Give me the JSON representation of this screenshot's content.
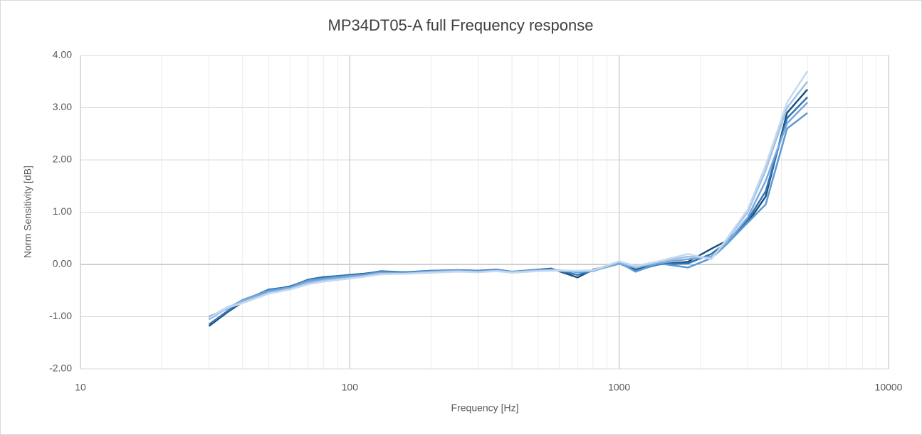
{
  "chart_data": {
    "type": "line",
    "title": "MP34DT05-A full Frequency response",
    "x_label": "Frequency [Hz]",
    "y_label": "Norm Sensitivity [dB]",
    "x_log": true,
    "grid": true,
    "minor_grid": true,
    "xlim": [
      10,
      10000
    ],
    "xticks": [
      10,
      100,
      1000,
      10000
    ],
    "ylim": [
      -2,
      4
    ],
    "yticks": [
      {
        "value": -2,
        "label": "-2.00"
      },
      {
        "value": -1,
        "label": "-1.00"
      },
      {
        "value": 0,
        "label": "0.00"
      },
      {
        "value": 1,
        "label": "1.00"
      },
      {
        "value": 2,
        "label": "2.00"
      },
      {
        "value": 3,
        "label": "3.00"
      },
      {
        "value": 4,
        "label": "4.00"
      }
    ],
    "x": [
      30,
      35,
      40,
      50,
      60,
      70,
      80,
      100,
      112,
      130,
      160,
      200,
      250,
      300,
      350,
      400,
      500,
      560,
      700,
      800,
      1000,
      1150,
      1400,
      1800,
      2200,
      2500,
      3000,
      3500,
      4200,
      5000
    ],
    "series": [
      {
        "color": "#1f4e79",
        "values": [
          -1.18,
          -0.92,
          -0.72,
          -0.5,
          -0.42,
          -0.3,
          -0.25,
          -0.2,
          -0.18,
          -0.14,
          -0.15,
          -0.13,
          -0.11,
          -0.12,
          -0.1,
          -0.14,
          -0.1,
          -0.08,
          -0.25,
          -0.1,
          0.03,
          -0.1,
          0.0,
          0.05,
          0.3,
          0.45,
          0.8,
          1.3,
          2.9,
          3.35
        ]
      },
      {
        "color": "#2e75b6",
        "values": [
          -1.15,
          -0.9,
          -0.7,
          -0.48,
          -0.43,
          -0.29,
          -0.24,
          -0.21,
          -0.19,
          -0.13,
          -0.15,
          -0.12,
          -0.11,
          -0.12,
          -0.1,
          -0.15,
          -0.1,
          -0.09,
          -0.2,
          -0.12,
          0.02,
          -0.12,
          0.0,
          0.02,
          0.2,
          0.42,
          0.85,
          1.4,
          2.8,
          3.2
        ]
      },
      {
        "color": "#5b9bd5",
        "values": [
          -1.0,
          -0.85,
          -0.68,
          -0.5,
          -0.44,
          -0.31,
          -0.27,
          -0.22,
          -0.2,
          -0.15,
          -0.16,
          -0.13,
          -0.12,
          -0.13,
          -0.11,
          -0.14,
          -0.11,
          -0.1,
          -0.15,
          -0.13,
          0.04,
          -0.14,
          0.02,
          -0.06,
          0.12,
          0.38,
          0.8,
          1.15,
          2.6,
          2.9
        ]
      },
      {
        "color": "#7aa7d9",
        "values": [
          -1.05,
          -0.84,
          -0.69,
          -0.52,
          -0.45,
          -0.33,
          -0.29,
          -0.23,
          -0.21,
          -0.16,
          -0.17,
          -0.14,
          -0.12,
          -0.14,
          -0.12,
          -0.15,
          -0.12,
          -0.1,
          -0.14,
          -0.12,
          0.01,
          -0.06,
          0.03,
          0.1,
          0.15,
          0.4,
          0.9,
          1.6,
          2.7,
          3.1
        ]
      },
      {
        "color": "#9dc3e6",
        "values": [
          -1.02,
          -0.82,
          -0.72,
          -0.55,
          -0.47,
          -0.36,
          -0.31,
          -0.26,
          -0.23,
          -0.18,
          -0.18,
          -0.15,
          -0.13,
          -0.15,
          -0.12,
          -0.15,
          -0.12,
          -0.11,
          -0.13,
          -0.12,
          0.05,
          -0.05,
          0.05,
          0.15,
          0.12,
          0.45,
          1.0,
          1.8,
          3.0,
          3.5
        ]
      },
      {
        "color": "#c5d9f1",
        "values": [
          -1.03,
          -0.83,
          -0.74,
          -0.56,
          -0.48,
          -0.38,
          -0.33,
          -0.27,
          -0.24,
          -0.19,
          -0.18,
          -0.16,
          -0.14,
          -0.15,
          -0.13,
          -0.16,
          -0.13,
          -0.12,
          -0.12,
          -0.11,
          0.06,
          -0.03,
          0.06,
          0.2,
          0.1,
          0.48,
          1.05,
          1.9,
          3.1,
          3.7
        ]
      }
    ]
  }
}
